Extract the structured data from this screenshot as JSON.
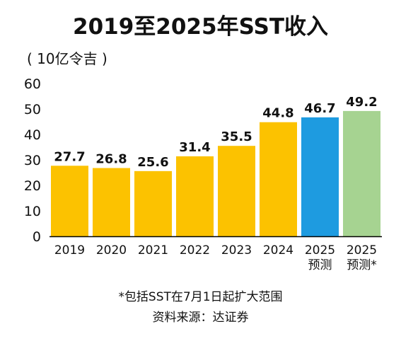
{
  "chart_data": {
    "type": "bar",
    "title": "2019至2025年SST收入",
    "unit": "( 10亿令吉 )",
    "categories": [
      [
        "2019"
      ],
      [
        "2020"
      ],
      [
        "2021"
      ],
      [
        "2022"
      ],
      [
        "2023"
      ],
      [
        "2024"
      ],
      [
        "2025",
        "预测"
      ],
      [
        "2025",
        "预测*"
      ]
    ],
    "values": [
      27.7,
      26.8,
      25.6,
      31.4,
      35.5,
      44.8,
      46.7,
      49.2
    ],
    "value_labels": [
      "27.7",
      "26.8",
      "25.6",
      "31.4",
      "35.5",
      "44.8",
      "46.7",
      "49.2"
    ],
    "colors": [
      "#FCC200",
      "#FCC200",
      "#FCC200",
      "#FCC200",
      "#FCC200",
      "#FCC200",
      "#1E9BE0",
      "#A6D391"
    ],
    "yticks": [
      "0",
      "10",
      "20",
      "30",
      "40",
      "50",
      "60"
    ],
    "ylim": [
      0,
      60
    ],
    "xlabel": "",
    "ylabel": "",
    "grid": false,
    "legend": "none"
  },
  "footnote": "*包括SST在7月1日起扩大范围",
  "source": "资料来源：达证券"
}
